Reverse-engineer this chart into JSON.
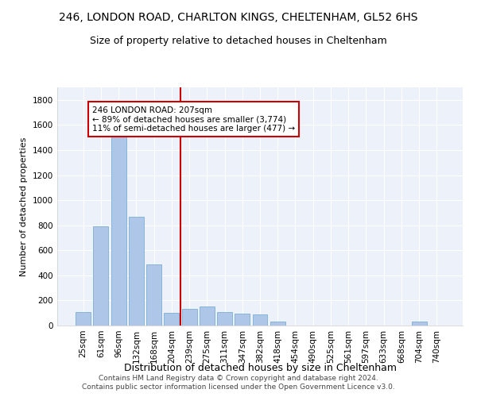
{
  "title1": "246, LONDON ROAD, CHARLTON KINGS, CHELTENHAM, GL52 6HS",
  "title2": "Size of property relative to detached houses in Cheltenham",
  "xlabel": "Distribution of detached houses by size in Cheltenham",
  "ylabel": "Number of detached properties",
  "categories": [
    "25sqm",
    "61sqm",
    "96sqm",
    "132sqm",
    "168sqm",
    "204sqm",
    "239sqm",
    "275sqm",
    "311sqm",
    "347sqm",
    "382sqm",
    "418sqm",
    "454sqm",
    "490sqm",
    "525sqm",
    "561sqm",
    "597sqm",
    "633sqm",
    "668sqm",
    "704sqm",
    "740sqm"
  ],
  "values": [
    110,
    790,
    1530,
    870,
    490,
    100,
    135,
    150,
    110,
    95,
    90,
    30,
    0,
    0,
    0,
    0,
    0,
    0,
    0,
    30,
    0
  ],
  "bar_color": "#aec6e8",
  "bar_edge_color": "#7aafd4",
  "vline_color": "#cc0000",
  "annotation_text": "246 LONDON ROAD: 207sqm\n← 89% of detached houses are smaller (3,774)\n11% of semi-detached houses are larger (477) →",
  "annotation_box_color": "#ffffff",
  "annotation_box_edge": "#cc0000",
  "ylim": [
    0,
    1900
  ],
  "yticks": [
    0,
    200,
    400,
    600,
    800,
    1000,
    1200,
    1400,
    1600,
    1800
  ],
  "footer1": "Contains HM Land Registry data © Crown copyright and database right 2024.",
  "footer2": "Contains public sector information licensed under the Open Government Licence v3.0.",
  "bg_color": "#ffffff",
  "plot_bg_color": "#edf2fa",
  "title1_fontsize": 10,
  "title2_fontsize": 9,
  "xlabel_fontsize": 9,
  "ylabel_fontsize": 8,
  "tick_fontsize": 7.5,
  "annot_fontsize": 7.5,
  "footer_fontsize": 6.5
}
